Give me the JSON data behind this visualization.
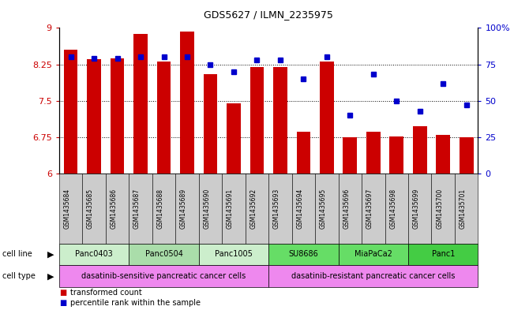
{
  "title": "GDS5627 / ILMN_2235975",
  "samples": [
    "GSM1435684",
    "GSM1435685",
    "GSM1435686",
    "GSM1435687",
    "GSM1435688",
    "GSM1435689",
    "GSM1435690",
    "GSM1435691",
    "GSM1435692",
    "GSM1435693",
    "GSM1435694",
    "GSM1435695",
    "GSM1435696",
    "GSM1435697",
    "GSM1435698",
    "GSM1435699",
    "GSM1435700",
    "GSM1435701"
  ],
  "bar_values": [
    8.55,
    8.35,
    8.38,
    8.88,
    8.3,
    8.92,
    8.05,
    7.45,
    8.19,
    8.19,
    6.87,
    8.3,
    6.75,
    6.87,
    6.77,
    6.97,
    6.8,
    6.75
  ],
  "percentile_values": [
    80,
    79,
    79,
    80,
    80,
    80,
    75,
    70,
    78,
    78,
    65,
    80,
    40,
    68,
    50,
    43,
    62,
    47
  ],
  "bar_color": "#cc0000",
  "percentile_color": "#0000cc",
  "ylim_left": [
    6,
    9
  ],
  "ylim_right": [
    0,
    100
  ],
  "yticks_left": [
    6,
    6.75,
    7.5,
    8.25,
    9
  ],
  "ytick_labels_left": [
    "6",
    "6.75",
    "7.5",
    "8.25",
    "9"
  ],
  "yticks_right": [
    0,
    25,
    50,
    75,
    100
  ],
  "ytick_labels_right": [
    "0",
    "25",
    "50",
    "75",
    "100%"
  ],
  "cell_lines": [
    {
      "label": "Panc0403",
      "start": 0,
      "end": 3,
      "color": "#cceecc"
    },
    {
      "label": "Panc0504",
      "start": 3,
      "end": 6,
      "color": "#aaddaa"
    },
    {
      "label": "Panc1005",
      "start": 6,
      "end": 9,
      "color": "#cceecc"
    },
    {
      "label": "SU8686",
      "start": 9,
      "end": 12,
      "color": "#66dd66"
    },
    {
      "label": "MiaPaCa2",
      "start": 12,
      "end": 15,
      "color": "#66dd66"
    },
    {
      "label": "Panc1",
      "start": 15,
      "end": 18,
      "color": "#44cc44"
    }
  ],
  "cell_line_colors": [
    "#cceecc",
    "#aaddaa",
    "#cceecc",
    "#66dd66",
    "#66dd66",
    "#44cc44"
  ],
  "cell_types": [
    {
      "label": "dasatinib-sensitive pancreatic cancer cells",
      "start": 0,
      "end": 9,
      "color": "#ee88ee"
    },
    {
      "label": "dasatinib-resistant pancreatic cancer cells",
      "start": 9,
      "end": 18,
      "color": "#ee88ee"
    }
  ],
  "cell_type_colors": [
    "#ee88ee",
    "#ee88ee"
  ],
  "legend_items": [
    {
      "color": "#cc0000",
      "label": "transformed count"
    },
    {
      "color": "#0000cc",
      "label": "percentile rank within the sample"
    }
  ],
  "left_axis_color": "#cc0000",
  "right_axis_color": "#0000cc"
}
